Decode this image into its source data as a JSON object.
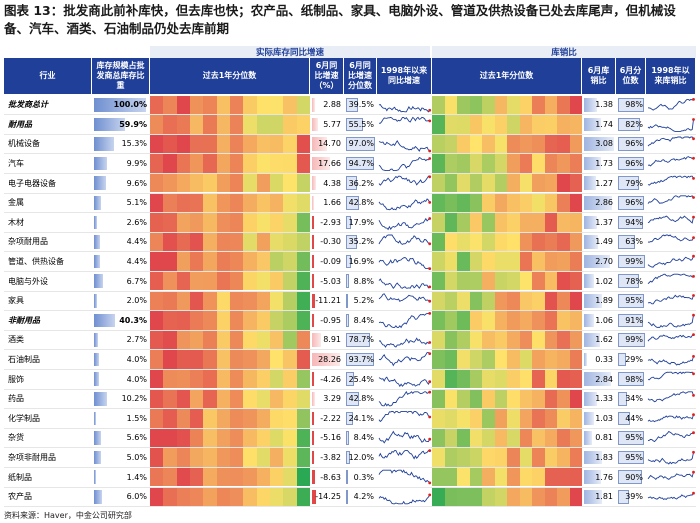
{
  "title": "图表 13：批发商此前补库快，但去库也快；农产品、纸制品、家具、电脑外设、管道及供热设备已处去库尾声，但机械设备、汽车、酒类、石油制品仍处去库前期",
  "headers": {
    "group_inventory": "实际库存同比增速",
    "group_ratio": "库销比",
    "industry": "行业",
    "share": "库存规模占批发商总库存比重",
    "pct_past_year_1": "过去1年分位数",
    "june_yoy": "6月同比增速（%）",
    "june_yoy_pct": "6月同比增速分位数",
    "since1998_yoy": "1998年以来同比增速",
    "pct_past_year_2": "过去1年分位数",
    "june_ratio": "6月库销比",
    "june_ratio_pct": "6月分位数",
    "since1998_ratio": "1998年以来库销比"
  },
  "colors": {
    "header_bg": "#1f3f99",
    "heat_low": "#2aa853",
    "heat_mid": "#ffe36a",
    "heat_high": "#e0474c",
    "highlight": "#ffff00"
  },
  "chart_data": {
    "type": "table",
    "rows": [
      {
        "name": "批发商总计",
        "bold": true,
        "share": "100.0%",
        "share_val": 100.0,
        "yoy": "2.88",
        "yoy_pct": "39.5%",
        "ratio": "1.38",
        "ratio_pct": "98%",
        "share_hl": true
      },
      {
        "name": "耐用品",
        "bold": true,
        "share": "59.9%",
        "share_val": 59.9,
        "yoy": "5.77",
        "yoy_pct": "55.5%",
        "ratio": "1.74",
        "ratio_pct": "82%",
        "share_hl": true
      },
      {
        "name": "机械设备",
        "bold": false,
        "share": "15.3%",
        "share_val": 15.3,
        "yoy": "14.70",
        "yoy_pct": "97.0%",
        "ratio": "3.08",
        "ratio_pct": "96%",
        "share_hl": false
      },
      {
        "name": "汽车",
        "bold": false,
        "share": "9.9%",
        "share_val": 9.9,
        "yoy": "17.66",
        "yoy_pct": "94.7%",
        "ratio": "1.73",
        "ratio_pct": "96%",
        "share_hl": false
      },
      {
        "name": "电子电器设备",
        "bold": false,
        "share": "9.6%",
        "share_val": 9.6,
        "yoy": "4.38",
        "yoy_pct": "36.2%",
        "ratio": "1.27",
        "ratio_pct": "79%",
        "share_hl": false
      },
      {
        "name": "金属",
        "bold": false,
        "share": "5.1%",
        "share_val": 5.1,
        "yoy": "1.66",
        "yoy_pct": "42.8%",
        "ratio": "2.86",
        "ratio_pct": "96%",
        "share_hl": false
      },
      {
        "name": "木材",
        "bold": false,
        "share": "2.6%",
        "share_val": 2.6,
        "yoy": "-2.93",
        "yoy_pct": "17.9%",
        "ratio": "1.37",
        "ratio_pct": "94%",
        "share_hl": false
      },
      {
        "name": "杂项耐用品",
        "bold": false,
        "share": "4.4%",
        "share_val": 4.4,
        "yoy": "-0.30",
        "yoy_pct": "35.2%",
        "ratio": "1.49",
        "ratio_pct": "63%",
        "share_hl": false
      },
      {
        "name": "管道、供热设备",
        "bold": false,
        "share": "4.4%",
        "share_val": 4.4,
        "yoy": "-0.09",
        "yoy_pct": "16.9%",
        "ratio": "2.70",
        "ratio_pct": "99%",
        "share_hl": false
      },
      {
        "name": "电脑与外设",
        "bold": false,
        "share": "6.7%",
        "share_val": 6.7,
        "yoy": "-5.03",
        "yoy_pct": "8.8%",
        "ratio": "1.02",
        "ratio_pct": "78%",
        "share_hl": false
      },
      {
        "name": "家具",
        "bold": false,
        "share": "2.0%",
        "share_val": 2.0,
        "yoy": "-11.21",
        "yoy_pct": "5.2%",
        "ratio": "1.89",
        "ratio_pct": "95%",
        "share_hl": false
      },
      {
        "name": "非耐用品",
        "bold": true,
        "share": "40.3%",
        "share_val": 40.3,
        "yoy": "-0.95",
        "yoy_pct": "8.4%",
        "ratio": "1.06",
        "ratio_pct": "91%",
        "share_hl": true
      },
      {
        "name": "酒类",
        "bold": false,
        "share": "2.7%",
        "share_val": 2.7,
        "yoy": "8.91",
        "yoy_pct": "78.7%",
        "ratio": "1.62",
        "ratio_pct": "99%",
        "share_hl": false
      },
      {
        "name": "石油制品",
        "bold": false,
        "share": "4.0%",
        "share_val": 4.0,
        "yoy": "28.26",
        "yoy_pct": "93.7%",
        "ratio": "0.33",
        "ratio_pct": "29%",
        "share_hl": false
      },
      {
        "name": "服饰",
        "bold": false,
        "share": "4.0%",
        "share_val": 4.0,
        "yoy": "-4.26",
        "yoy_pct": "25.4%",
        "ratio": "2.84",
        "ratio_pct": "98%",
        "share_hl": false
      },
      {
        "name": "药品",
        "bold": false,
        "share": "10.2%",
        "share_val": 10.2,
        "yoy": "3.29",
        "yoy_pct": "42.8%",
        "ratio": "1.33",
        "ratio_pct": "34%",
        "share_hl": false
      },
      {
        "name": "化学制品",
        "bold": false,
        "share": "1.5%",
        "share_val": 1.5,
        "yoy": "-2.22",
        "yoy_pct": "24.1%",
        "ratio": "1.03",
        "ratio_pct": "44%",
        "share_hl": false
      },
      {
        "name": "杂货",
        "bold": false,
        "share": "5.6%",
        "share_val": 5.6,
        "yoy": "-5.16",
        "yoy_pct": "8.4%",
        "ratio": "0.81",
        "ratio_pct": "95%",
        "share_hl": false
      },
      {
        "name": "杂项非耐用品",
        "bold": false,
        "share": "5.0%",
        "share_val": 5.0,
        "yoy": "-3.82",
        "yoy_pct": "12.0%",
        "ratio": "1.83",
        "ratio_pct": "95%",
        "share_hl": false
      },
      {
        "name": "纸制品",
        "bold": false,
        "share": "1.4%",
        "share_val": 1.4,
        "yoy": "-8.63",
        "yoy_pct": "0.3%",
        "ratio": "1.76",
        "ratio_pct": "90%",
        "share_hl": false
      },
      {
        "name": "农产品",
        "bold": false,
        "share": "6.0%",
        "share_val": 6.0,
        "yoy": "-14.25",
        "yoy_pct": "4.2%",
        "ratio": "1.81",
        "ratio_pct": "39%",
        "share_hl": false
      }
    ]
  },
  "source": "资料来源：Haver，中金公司研究部"
}
